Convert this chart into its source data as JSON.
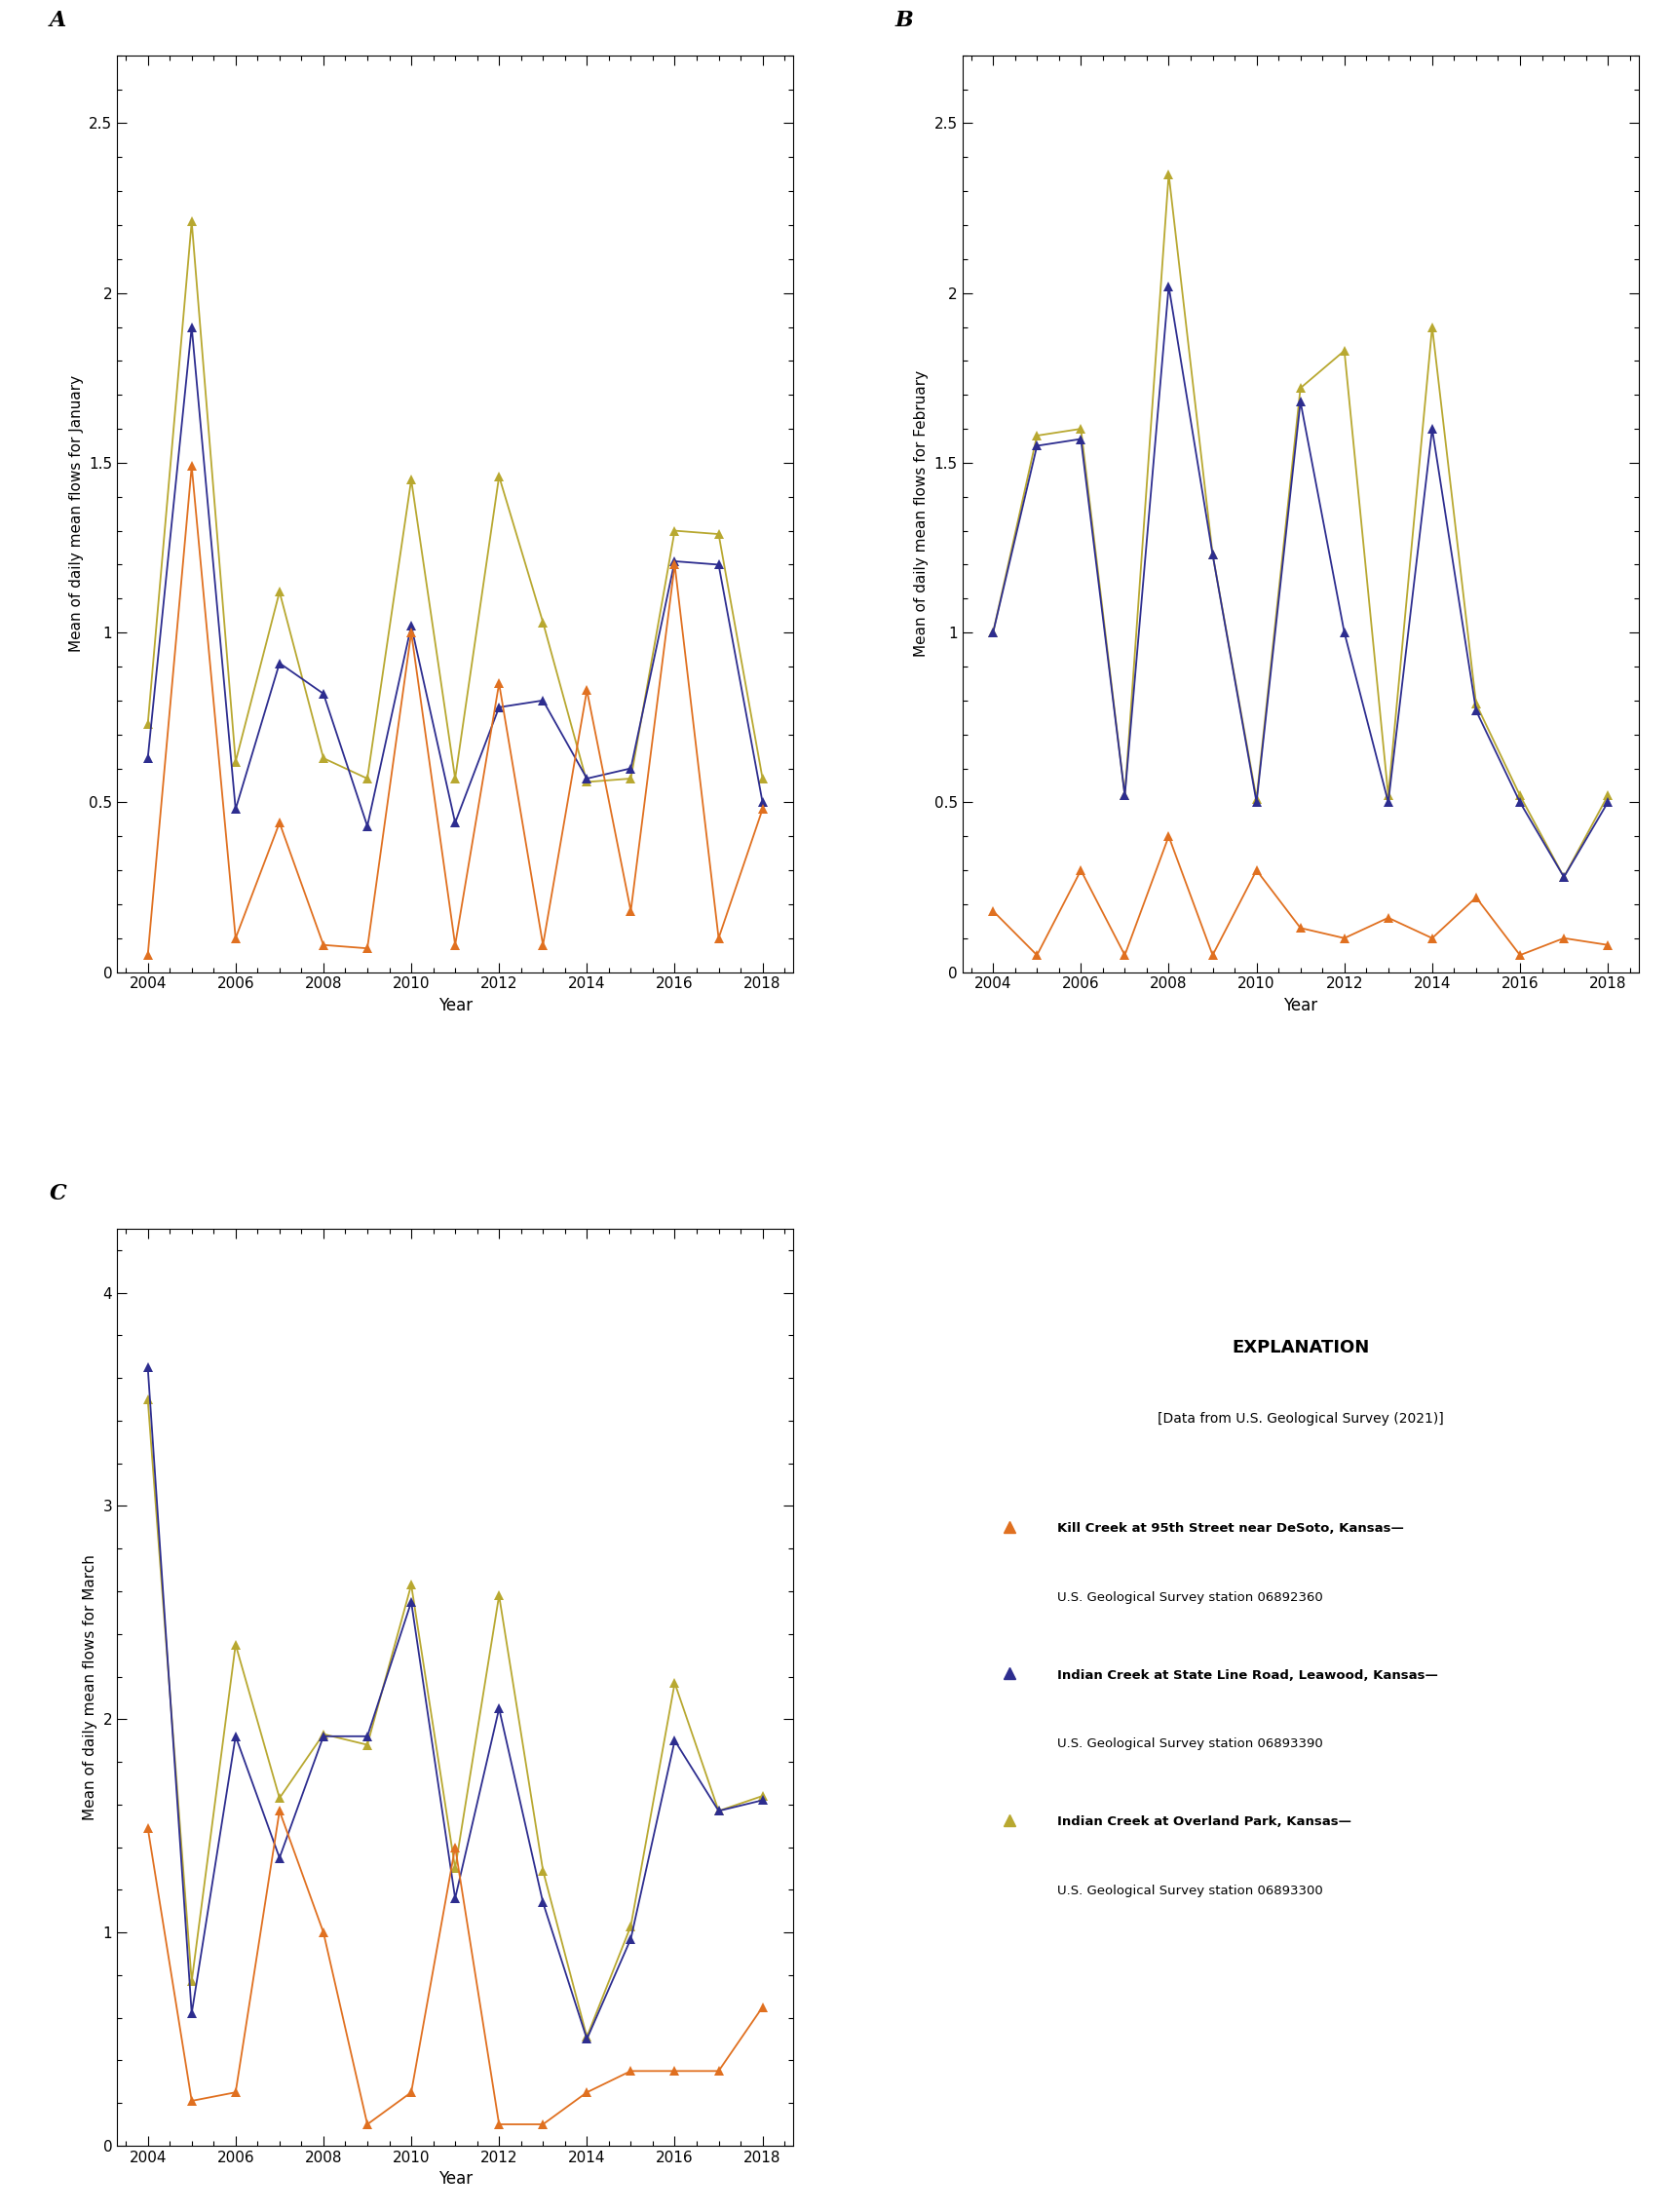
{
  "years": [
    2004,
    2005,
    2006,
    2007,
    2008,
    2009,
    2010,
    2011,
    2012,
    2013,
    2014,
    2015,
    2016,
    2017,
    2018
  ],
  "january": {
    "kill_creek": [
      0.05,
      1.49,
      0.1,
      0.44,
      0.08,
      0.07,
      1.0,
      0.08,
      0.85,
      0.08,
      0.83,
      0.18,
      1.2,
      0.1,
      0.48
    ],
    "indian_state": [
      0.63,
      1.9,
      0.48,
      0.91,
      0.82,
      0.43,
      1.02,
      0.44,
      0.78,
      0.8,
      0.57,
      0.6,
      1.21,
      1.2,
      0.5
    ],
    "indian_overland": [
      0.73,
      2.21,
      0.62,
      1.12,
      0.63,
      0.57,
      1.45,
      0.57,
      1.46,
      1.03,
      0.56,
      0.57,
      1.3,
      1.29,
      0.57
    ]
  },
  "february": {
    "kill_creek": [
      0.18,
      0.05,
      0.3,
      0.05,
      0.4,
      0.05,
      0.3,
      0.13,
      0.1,
      0.16,
      0.1,
      0.22,
      0.05,
      0.1,
      0.08
    ],
    "indian_state": [
      1.0,
      1.55,
      1.57,
      0.52,
      2.02,
      1.23,
      0.5,
      1.68,
      1.0,
      0.5,
      1.6,
      0.77,
      0.5,
      0.28,
      0.5
    ],
    "indian_overland": [
      1.0,
      1.58,
      1.6,
      0.52,
      2.35,
      1.23,
      0.51,
      1.72,
      1.83,
      0.52,
      1.9,
      0.79,
      0.52,
      0.28,
      0.52
    ]
  },
  "march": {
    "kill_creek": [
      1.49,
      0.21,
      0.25,
      1.57,
      1.0,
      0.1,
      0.25,
      1.4,
      0.1,
      0.1,
      0.25,
      0.35,
      0.35,
      0.35,
      0.65
    ],
    "indian_state": [
      3.65,
      0.62,
      1.92,
      1.35,
      1.92,
      1.92,
      2.55,
      1.16,
      2.05,
      1.14,
      0.5,
      0.97,
      1.9,
      1.57,
      1.62
    ],
    "indian_overland": [
      3.5,
      0.77,
      2.35,
      1.63,
      1.93,
      1.88,
      2.63,
      1.3,
      2.58,
      1.29,
      0.51,
      1.03,
      2.17,
      1.57,
      1.64
    ]
  },
  "colors": {
    "kill_creek": "#e07020",
    "indian_state": "#2d2d8f",
    "indian_overland": "#b8a830"
  },
  "ylim_jan": [
    0,
    2.7
  ],
  "ylim_feb": [
    0,
    2.7
  ],
  "ylim_mar": [
    0,
    4.3
  ],
  "yticks_jan": [
    0,
    0.5,
    1.0,
    1.5,
    2.0,
    2.5
  ],
  "yticks_feb": [
    0,
    0.5,
    1.0,
    1.5,
    2.0,
    2.5
  ],
  "yticks_mar": [
    0,
    1,
    2,
    3,
    4
  ],
  "xticks": [
    2004,
    2006,
    2008,
    2010,
    2012,
    2014,
    2016,
    2018
  ],
  "xlim": [
    2003.3,
    2018.7
  ],
  "xlabel": "Year",
  "ylabel_jan": "Mean of daily mean flows for January",
  "ylabel_feb": "Mean of daily mean flows for February",
  "ylabel_mar": "Mean of daily mean flows for March",
  "panel_labels": [
    "A",
    "B",
    "C"
  ],
  "explanation_title": "EXPLANATION",
  "explanation_subtitle": "[Data from U.S. Geological Survey (2021)]",
  "legend_entries": [
    {
      "label_bold": "Kill Creek at 95th Street near DeSoto, Kansas—",
      "label_normal": "U.S. Geological Survey station 06892360",
      "color": "#e07020"
    },
    {
      "label_bold": "Indian Creek at State Line Road, Leawood, Kansas—",
      "label_normal": "U.S. Geological Survey station 06893390",
      "color": "#2d2d8f"
    },
    {
      "label_bold": "Indian Creek at Overland Park, Kansas—",
      "label_normal": "U.S. Geological Survey station 06893300",
      "color": "#b8a830"
    }
  ]
}
